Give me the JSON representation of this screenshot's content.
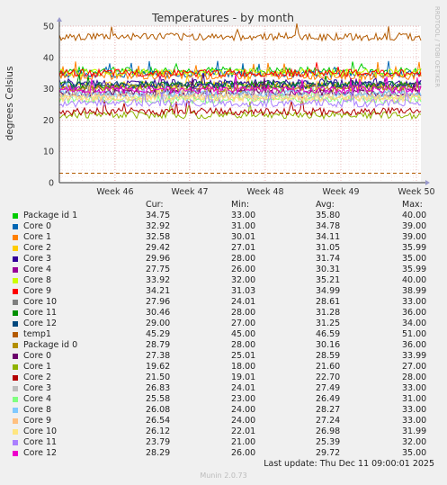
{
  "chart_data": {
    "type": "line",
    "title": "Temperatures - by month",
    "ylabel": "degrees Celsius",
    "xlabel": "",
    "ylim": [
      0,
      50
    ],
    "yticks": [
      0,
      10,
      20,
      30,
      40,
      50
    ],
    "categories": [
      "Week 46",
      "Week 47",
      "Week 48",
      "Week 49",
      "Week 50"
    ],
    "grid": true,
    "watermark": "RRDTOOL / TOBI OETIKER",
    "series": [
      {
        "name": "Package id 1",
        "color": "#00cc00",
        "cur": "34.75",
        "min": "33.00",
        "avg": "35.80",
        "max": "40.00",
        "level": 35.8
      },
      {
        "name": "Core 0",
        "color": "#0066b3",
        "cur": "32.92",
        "min": "31.00",
        "avg": "34.78",
        "max": "39.00",
        "level": 34.78
      },
      {
        "name": "Core 1",
        "color": "#ff8000",
        "cur": "32.58",
        "min": "30.01",
        "avg": "34.11",
        "max": "39.00",
        "level": 34.11
      },
      {
        "name": "Core 2",
        "color": "#ffcc00",
        "cur": "29.42",
        "min": "27.01",
        "avg": "31.05",
        "max": "35.99",
        "level": 31.05
      },
      {
        "name": "Core 3",
        "color": "#330099",
        "cur": "29.96",
        "min": "28.00",
        "avg": "31.74",
        "max": "35.00",
        "level": 31.74
      },
      {
        "name": "Core 4",
        "color": "#990099",
        "cur": "27.75",
        "min": "26.00",
        "avg": "30.31",
        "max": "35.99",
        "level": 30.31
      },
      {
        "name": "Core 8",
        "color": "#ccff00",
        "cur": "33.92",
        "min": "32.00",
        "avg": "35.21",
        "max": "40.00",
        "level": 35.21
      },
      {
        "name": "Core 9",
        "color": "#ff0000",
        "cur": "34.21",
        "min": "31.03",
        "avg": "34.99",
        "max": "38.99",
        "level": 34.99
      },
      {
        "name": "Core 10",
        "color": "#808080",
        "cur": "27.96",
        "min": "24.01",
        "avg": "28.61",
        "max": "33.00",
        "level": 28.61
      },
      {
        "name": "Core 11",
        "color": "#008f00",
        "cur": "30.46",
        "min": "28.00",
        "avg": "31.28",
        "max": "36.00",
        "level": 31.28
      },
      {
        "name": "Core 12",
        "color": "#00487d",
        "cur": "29.00",
        "min": "27.00",
        "avg": "31.25",
        "max": "34.00",
        "level": 31.25
      },
      {
        "name": "temp1",
        "color": "#b35a00",
        "cur": "45.29",
        "min": "45.00",
        "avg": "46.59",
        "max": "51.00",
        "level": 46.59
      },
      {
        "name": "Package id 0",
        "color": "#b38f00",
        "cur": "28.79",
        "min": "28.00",
        "avg": "30.16",
        "max": "36.00",
        "level": 30.16
      },
      {
        "name": "Core 0",
        "color": "#6b006b",
        "cur": "27.38",
        "min": "25.01",
        "avg": "28.59",
        "max": "33.99",
        "level": 28.59
      },
      {
        "name": "Core 1",
        "color": "#8fb300",
        "cur": "19.62",
        "min": "18.00",
        "avg": "21.60",
        "max": "27.00",
        "level": 21.6
      },
      {
        "name": "Core 2",
        "color": "#b30000",
        "cur": "21.50",
        "min": "19.01",
        "avg": "22.70",
        "max": "28.00",
        "level": 22.7
      },
      {
        "name": "Core 3",
        "color": "#bebebe",
        "cur": "26.83",
        "min": "24.01",
        "avg": "27.49",
        "max": "33.00",
        "level": 27.49
      },
      {
        "name": "Core 4",
        "color": "#80ff80",
        "cur": "25.58",
        "min": "23.00",
        "avg": "26.49",
        "max": "31.00",
        "level": 26.49
      },
      {
        "name": "Core 8",
        "color": "#80c9ff",
        "cur": "26.08",
        "min": "24.00",
        "avg": "28.27",
        "max": "33.00",
        "level": 28.27
      },
      {
        "name": "Core 9",
        "color": "#ffc080",
        "cur": "26.54",
        "min": "24.00",
        "avg": "27.24",
        "max": "33.00",
        "level": 27.24
      },
      {
        "name": "Core 10",
        "color": "#ffe680",
        "cur": "26.12",
        "min": "22.01",
        "avg": "26.98",
        "max": "31.99",
        "level": 26.98
      },
      {
        "name": "Core 11",
        "color": "#aa80ff",
        "cur": "23.79",
        "min": "21.00",
        "avg": "25.39",
        "max": "32.00",
        "level": 25.39
      },
      {
        "name": "Core 12",
        "color": "#ee00cc",
        "cur": "28.29",
        "min": "26.00",
        "avg": "29.72",
        "max": "35.00",
        "level": 29.72
      }
    ],
    "threshold": {
      "value": 3,
      "color": "#b35a00"
    }
  },
  "legend_headers": {
    "cur": "Cur:",
    "min": "Min:",
    "avg": "Avg:",
    "max": "Max:"
  },
  "footer": {
    "last_update": "Last update: Thu Dec 11 09:00:01 2025",
    "version": "Munin 2.0.73"
  }
}
